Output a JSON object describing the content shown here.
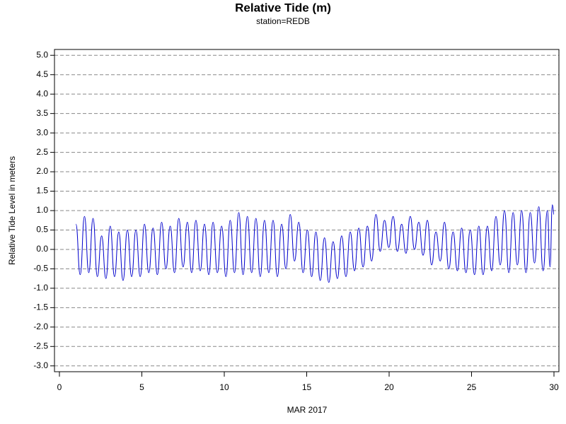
{
  "chart_data": {
    "type": "line",
    "title": "Relative Tide (m)",
    "subtitle": "station=REDB",
    "x_label": "MAR 2017",
    "y_label": "Relative Tide Level in meters",
    "color": "#0000cc",
    "grid": true,
    "xlim": [
      -0.3,
      30.3
    ],
    "xticks": [
      0,
      5,
      10,
      15,
      20,
      25,
      30
    ],
    "ylim": [
      -3.15,
      5.15
    ],
    "yticks": [
      {
        "value": -3,
        "label": "-3.0"
      },
      {
        "value": -2.5,
        "label": "-2.5"
      },
      {
        "value": -2,
        "label": "-2.0"
      },
      {
        "value": -1.5,
        "label": "-1.5"
      },
      {
        "value": -1,
        "label": "-1.0"
      },
      {
        "value": -0.5,
        "label": "-0.5"
      },
      {
        "value": 0,
        "label": "0.0"
      },
      {
        "value": 0.5,
        "label": "0.5"
      },
      {
        "value": 1,
        "label": "1.0"
      },
      {
        "value": 1.5,
        "label": "1.5"
      },
      {
        "value": 2,
        "label": "2.0"
      },
      {
        "value": 2.5,
        "label": "2.5"
      },
      {
        "value": 3,
        "label": "3.0"
      },
      {
        "value": 3.5,
        "label": "3.5"
      },
      {
        "value": 4,
        "label": "4.0"
      },
      {
        "value": 4.5,
        "label": "4.5"
      },
      {
        "value": 5,
        "label": "5.0"
      }
    ],
    "x": [
      1.0,
      1.26,
      1.52,
      1.78,
      2.04,
      2.3,
      2.56,
      2.82,
      3.08,
      3.34,
      3.6,
      3.86,
      4.12,
      4.38,
      4.64,
      4.9,
      5.16,
      5.42,
      5.68,
      5.94,
      6.2,
      6.46,
      6.72,
      6.98,
      7.24,
      7.5,
      7.76,
      8.02,
      8.28,
      8.54,
      8.8,
      9.06,
      9.32,
      9.58,
      9.84,
      10.1,
      10.36,
      10.62,
      10.88,
      11.14,
      11.4,
      11.66,
      11.92,
      12.18,
      12.44,
      12.7,
      12.96,
      13.22,
      13.48,
      13.74,
      14.0,
      14.26,
      14.52,
      14.78,
      15.04,
      15.3,
      15.56,
      15.82,
      16.08,
      16.34,
      16.6,
      16.86,
      17.12,
      17.38,
      17.64,
      17.9,
      18.16,
      18.42,
      18.68,
      18.94,
      19.2,
      19.46,
      19.72,
      19.98,
      20.24,
      20.5,
      20.76,
      21.02,
      21.28,
      21.54,
      21.8,
      22.06,
      22.32,
      22.58,
      22.84,
      23.1,
      23.36,
      23.62,
      23.88,
      24.14,
      24.4,
      24.66,
      24.92,
      25.18,
      25.44,
      25.7,
      25.96,
      26.22,
      26.48,
      26.74,
      27.0,
      27.26,
      27.52,
      27.78,
      28.04,
      28.3,
      28.56,
      28.82,
      29.08,
      29.34,
      29.6,
      29.76,
      29.9,
      30.0
    ],
    "values": [
      0.65,
      -0.65,
      0.85,
      -0.6,
      0.8,
      -0.7,
      0.35,
      -0.75,
      0.6,
      -0.7,
      0.45,
      -0.8,
      0.5,
      -0.7,
      0.5,
      -0.7,
      0.65,
      -0.6,
      0.55,
      -0.65,
      0.7,
      -0.5,
      0.6,
      -0.6,
      0.8,
      -0.45,
      0.7,
      -0.6,
      0.75,
      -0.55,
      0.65,
      -0.65,
      0.7,
      -0.6,
      0.6,
      -0.7,
      0.75,
      -0.6,
      0.95,
      -0.65,
      0.85,
      -0.6,
      0.8,
      -0.7,
      0.75,
      -0.6,
      0.75,
      -0.7,
      0.65,
      -0.5,
      0.9,
      -0.3,
      0.7,
      -0.6,
      0.5,
      -0.7,
      0.45,
      -0.8,
      0.3,
      -0.85,
      0.2,
      -0.75,
      0.35,
      -0.7,
      0.45,
      -0.55,
      0.55,
      -0.45,
      0.6,
      -0.3,
      0.9,
      -0.05,
      0.75,
      0.05,
      0.85,
      -0.05,
      0.65,
      -0.1,
      0.85,
      0.0,
      0.7,
      -0.15,
      0.75,
      -0.4,
      0.45,
      -0.3,
      0.7,
      -0.5,
      0.45,
      -0.55,
      0.55,
      -0.6,
      0.5,
      -0.65,
      0.6,
      -0.65,
      0.6,
      -0.55,
      0.85,
      -0.4,
      1.0,
      -0.6,
      0.95,
      -0.4,
      1.0,
      -0.6,
      0.95,
      -0.35,
      1.1,
      -0.55,
      1.0,
      -0.45,
      1.15,
      0.9
    ]
  }
}
